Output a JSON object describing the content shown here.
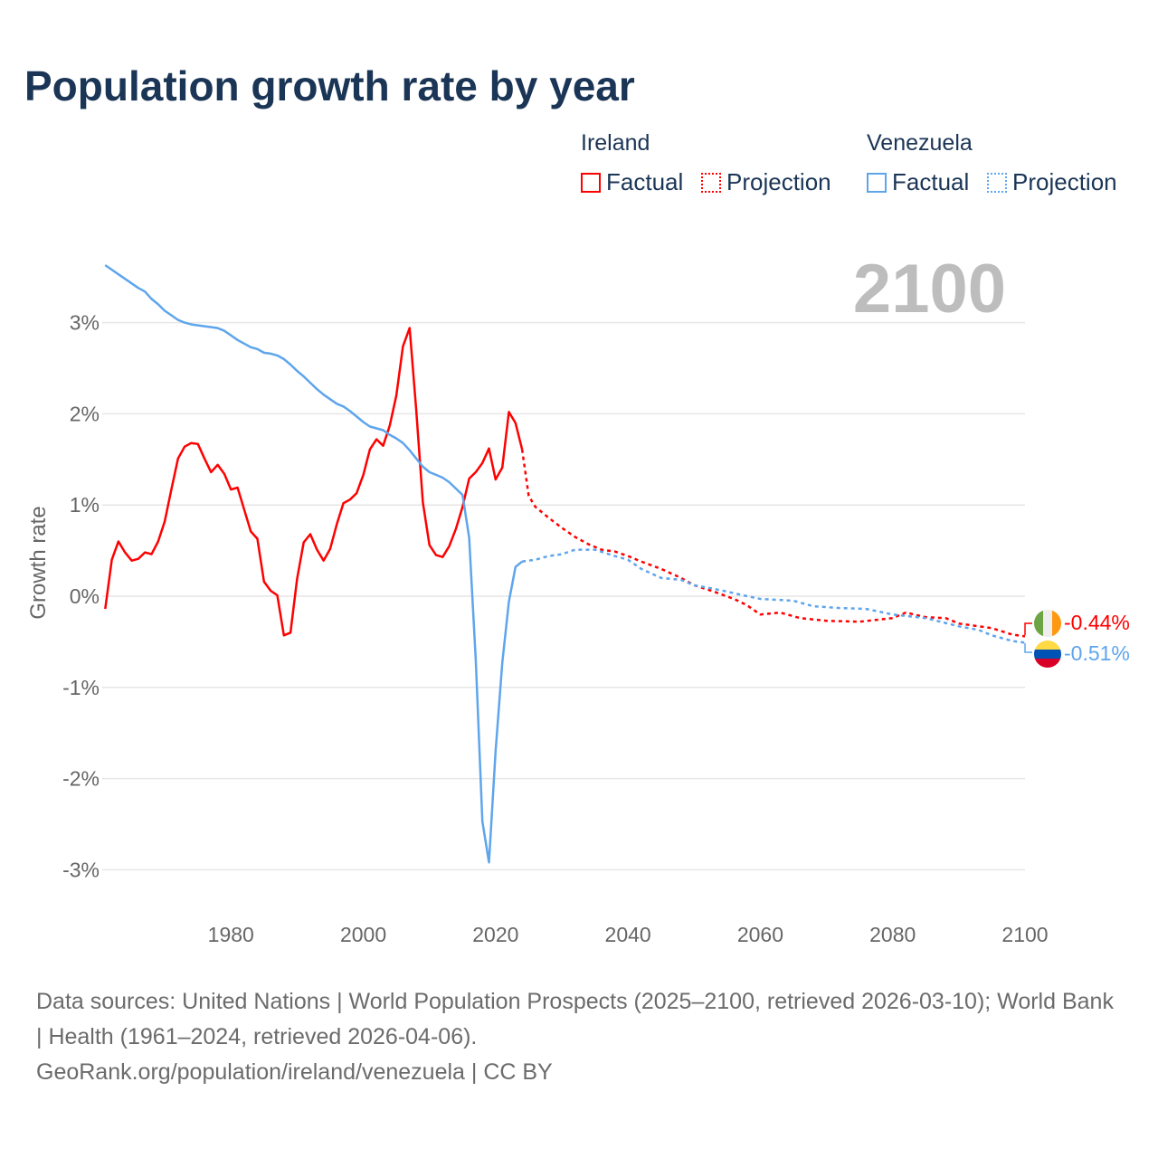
{
  "title": "Population growth rate by year",
  "legend": {
    "groups": [
      {
        "country": "Ireland",
        "color": "#ff0000",
        "factual": "Factual",
        "projection": "Projection"
      },
      {
        "country": "Venezuela",
        "color": "#5ea5ec",
        "factual": "Factual",
        "projection": "Projection"
      }
    ]
  },
  "current_year": "2100",
  "end_labels": {
    "ireland": "-0.44%",
    "venezuela": "-0.51%"
  },
  "source": {
    "line1": "Data sources: United Nations | World Population Prospects (2025–2100, retrieved 2026-03-10); World Bank | Health (1961–2024, retrieved 2026-04-06).",
    "line2": "GeoRank.org/population/ireland/venezuela | CC BY"
  },
  "chart_data": {
    "type": "line",
    "title": "Population growth rate by year",
    "xlabel": "",
    "ylabel": "Growth rate",
    "xlim": [
      1961,
      2100
    ],
    "ylim": [
      -3.5,
      3.8
    ],
    "x_ticks": [
      1980,
      2000,
      2020,
      2040,
      2060,
      2080,
      2100
    ],
    "x_tick_labels": [
      "1980",
      "2000",
      "2020",
      "2040",
      "2060",
      "2080",
      "2100"
    ],
    "y_ticks": [
      3,
      2,
      1,
      0,
      -1,
      -2,
      -3
    ],
    "y_tick_labels": [
      "3%",
      "2%",
      "1%",
      "0%",
      "-1%",
      "-2%",
      "-3%"
    ],
    "grid": true,
    "legend_position": "top-right",
    "series": [
      {
        "name": "Ireland Factual",
        "color": "#ff0000",
        "dashed": false,
        "start_year": 1961,
        "values": [
          -0.14,
          0.4,
          0.6,
          0.48,
          0.39,
          0.41,
          0.48,
          0.46,
          0.6,
          0.82,
          1.17,
          1.51,
          1.64,
          1.68,
          1.67,
          1.51,
          1.36,
          1.44,
          1.34,
          1.17,
          1.19,
          0.95,
          0.71,
          0.63,
          0.16,
          0.06,
          0.01,
          -0.43,
          -0.4,
          0.19,
          0.59,
          0.68,
          0.51,
          0.39,
          0.52,
          0.79,
          1.02,
          1.06,
          1.13,
          1.33,
          1.61,
          1.72,
          1.65,
          1.87,
          2.2,
          2.74,
          2.94,
          2.04,
          1.03,
          0.56,
          0.45,
          0.43,
          0.55,
          0.74,
          0.98,
          1.29,
          1.36,
          1.46,
          1.62,
          1.28,
          1.41,
          2.02,
          1.9,
          1.61
        ]
      },
      {
        "name": "Ireland Projection",
        "color": "#ff0000",
        "dashed": true,
        "points": [
          [
            2024,
            1.61
          ],
          [
            2025,
            1.1
          ],
          [
            2026,
            0.98
          ],
          [
            2028,
            0.86
          ],
          [
            2030,
            0.75
          ],
          [
            2032,
            0.65
          ],
          [
            2034,
            0.57
          ],
          [
            2036,
            0.51
          ],
          [
            2038,
            0.49
          ],
          [
            2040,
            0.44
          ],
          [
            2042,
            0.38
          ],
          [
            2045,
            0.3
          ],
          [
            2048,
            0.2
          ],
          [
            2050,
            0.12
          ],
          [
            2053,
            0.05
          ],
          [
            2056,
            -0.03
          ],
          [
            2058,
            -0.1
          ],
          [
            2060,
            -0.2
          ],
          [
            2063,
            -0.18
          ],
          [
            2066,
            -0.24
          ],
          [
            2070,
            -0.27
          ],
          [
            2075,
            -0.28
          ],
          [
            2080,
            -0.24
          ],
          [
            2082,
            -0.18
          ],
          [
            2085,
            -0.23
          ],
          [
            2088,
            -0.24
          ],
          [
            2090,
            -0.3
          ],
          [
            2095,
            -0.35
          ],
          [
            2098,
            -0.42
          ],
          [
            2100,
            -0.44
          ]
        ]
      },
      {
        "name": "Venezuela Factual",
        "color": "#5ea5ec",
        "dashed": false,
        "start_year": 1961,
        "values": [
          3.63,
          3.58,
          3.53,
          3.48,
          3.43,
          3.38,
          3.34,
          3.26,
          3.2,
          3.13,
          3.08,
          3.03,
          3.0,
          2.98,
          2.97,
          2.96,
          2.95,
          2.94,
          2.91,
          2.86,
          2.81,
          2.77,
          2.73,
          2.71,
          2.67,
          2.66,
          2.64,
          2.6,
          2.54,
          2.47,
          2.41,
          2.34,
          2.27,
          2.21,
          2.16,
          2.11,
          2.08,
          2.03,
          1.97,
          1.91,
          1.86,
          1.84,
          1.82,
          1.77,
          1.73,
          1.68,
          1.6,
          1.51,
          1.42,
          1.36,
          1.33,
          1.3,
          1.25,
          1.18,
          1.11,
          0.64,
          -0.7,
          -2.47,
          -2.92,
          -1.7,
          -0.73,
          -0.06,
          0.32,
          0.38
        ]
      },
      {
        "name": "Venezuela Projection",
        "color": "#5ea5ec",
        "dashed": true,
        "points": [
          [
            2024,
            0.38
          ],
          [
            2026,
            0.4
          ],
          [
            2028,
            0.44
          ],
          [
            2030,
            0.46
          ],
          [
            2032,
            0.51
          ],
          [
            2035,
            0.51
          ],
          [
            2038,
            0.44
          ],
          [
            2040,
            0.4
          ],
          [
            2042,
            0.3
          ],
          [
            2045,
            0.2
          ],
          [
            2048,
            0.18
          ],
          [
            2050,
            0.12
          ],
          [
            2053,
            0.08
          ],
          [
            2055,
            0.05
          ],
          [
            2058,
            0.0
          ],
          [
            2060,
            -0.03
          ],
          [
            2065,
            -0.05
          ],
          [
            2068,
            -0.11
          ],
          [
            2072,
            -0.13
          ],
          [
            2076,
            -0.14
          ],
          [
            2080,
            -0.2
          ],
          [
            2085,
            -0.24
          ],
          [
            2090,
            -0.33
          ],
          [
            2093,
            -0.37
          ],
          [
            2095,
            -0.43
          ],
          [
            2098,
            -0.49
          ],
          [
            2100,
            -0.51
          ]
        ]
      }
    ]
  }
}
